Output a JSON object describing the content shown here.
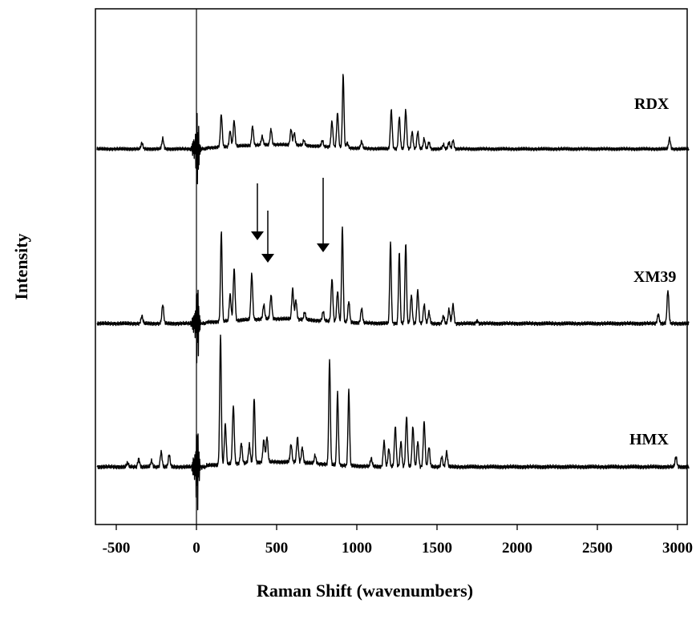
{
  "chart_data": {
    "type": "line",
    "title": "",
    "xlabel": "Raman Shift (wavenumbers)",
    "ylabel": "Intensity",
    "xlim": [
      -620,
      3070
    ],
    "x_ticks": [
      -500,
      0,
      500,
      1000,
      1500,
      2000,
      2500,
      3000
    ],
    "x_tick_labels": [
      "-500",
      "0",
      "500",
      "1000",
      "1500",
      "2000",
      "2500",
      "3000"
    ],
    "y_ticks_shown": false,
    "grid": false,
    "legend": "none",
    "series": [
      {
        "name": "RDX",
        "peaks": [
          [
            -340,
            0.07
          ],
          [
            -210,
            0.12
          ],
          [
            155,
            0.38
          ],
          [
            210,
            0.18
          ],
          [
            235,
            0.3
          ],
          [
            350,
            0.22
          ],
          [
            410,
            0.1
          ],
          [
            465,
            0.18
          ],
          [
            590,
            0.18
          ],
          [
            610,
            0.14
          ],
          [
            670,
            0.06
          ],
          [
            785,
            0.07
          ],
          [
            845,
            0.3
          ],
          [
            880,
            0.4
          ],
          [
            915,
            0.85
          ],
          [
            940,
            0.06
          ],
          [
            1030,
            0.08
          ],
          [
            1215,
            0.45
          ],
          [
            1265,
            0.37
          ],
          [
            1305,
            0.45
          ],
          [
            1345,
            0.2
          ],
          [
            1380,
            0.2
          ],
          [
            1420,
            0.12
          ],
          [
            1450,
            0.08
          ],
          [
            1540,
            0.05
          ],
          [
            1575,
            0.08
          ],
          [
            1600,
            0.1
          ],
          [
            2950,
            0.12
          ]
        ]
      },
      {
        "name": "XM39",
        "peaks": [
          [
            -340,
            0.08
          ],
          [
            -210,
            0.2
          ],
          [
            155,
            0.95
          ],
          [
            210,
            0.28
          ],
          [
            235,
            0.55
          ],
          [
            345,
            0.48
          ],
          [
            420,
            0.15
          ],
          [
            465,
            0.25
          ],
          [
            600,
            0.32
          ],
          [
            620,
            0.2
          ],
          [
            675,
            0.08
          ],
          [
            790,
            0.1
          ],
          [
            845,
            0.45
          ],
          [
            880,
            0.32
          ],
          [
            910,
            1.0
          ],
          [
            950,
            0.22
          ],
          [
            1030,
            0.15
          ],
          [
            1210,
            0.85
          ],
          [
            1265,
            0.75
          ],
          [
            1305,
            0.85
          ],
          [
            1340,
            0.3
          ],
          [
            1380,
            0.35
          ],
          [
            1420,
            0.2
          ],
          [
            1450,
            0.12
          ],
          [
            1540,
            0.08
          ],
          [
            1575,
            0.15
          ],
          [
            1600,
            0.2
          ],
          [
            1750,
            0.03
          ],
          [
            2880,
            0.1
          ],
          [
            2940,
            0.35
          ]
        ],
        "annotations": [
          {
            "type": "arrow",
            "x": 380
          },
          {
            "type": "arrow",
            "x": 445
          },
          {
            "type": "arrow",
            "x": 790
          }
        ]
      },
      {
        "name": "HMX",
        "peaks": [
          [
            -430,
            0.04
          ],
          [
            -360,
            0.08
          ],
          [
            -280,
            0.06
          ],
          [
            -220,
            0.15
          ],
          [
            -170,
            0.12
          ],
          [
            150,
            1.3
          ],
          [
            180,
            0.4
          ],
          [
            230,
            0.58
          ],
          [
            280,
            0.2
          ],
          [
            330,
            0.18
          ],
          [
            360,
            0.65
          ],
          [
            420,
            0.22
          ],
          [
            440,
            0.25
          ],
          [
            590,
            0.18
          ],
          [
            630,
            0.25
          ],
          [
            660,
            0.15
          ],
          [
            740,
            0.08
          ],
          [
            830,
            1.05
          ],
          [
            880,
            0.72
          ],
          [
            950,
            0.75
          ],
          [
            1090,
            0.08
          ],
          [
            1170,
            0.25
          ],
          [
            1200,
            0.18
          ],
          [
            1240,
            0.4
          ],
          [
            1275,
            0.25
          ],
          [
            1310,
            0.5
          ],
          [
            1350,
            0.4
          ],
          [
            1380,
            0.25
          ],
          [
            1420,
            0.45
          ],
          [
            1450,
            0.2
          ],
          [
            1530,
            0.1
          ],
          [
            1560,
            0.15
          ],
          [
            2990,
            0.1
          ]
        ]
      }
    ]
  }
}
